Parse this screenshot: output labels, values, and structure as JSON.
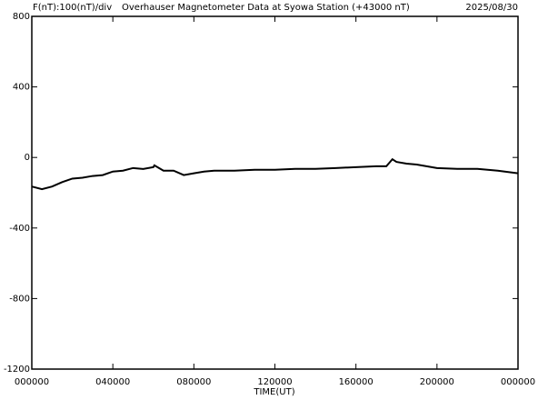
{
  "chart_data": {
    "type": "line",
    "header_left": "F(nT):100(nT)/div",
    "title": "Overhauser Magnetometer Data at Syowa Station (+43000 nT)",
    "date": "2025/08/30",
    "x_label": "TIME(UT)",
    "x": [
      0,
      0.5,
      1,
      1.5,
      2,
      2.5,
      3,
      3.5,
      4,
      4.5,
      5,
      5.5,
      6,
      6.05,
      6.5,
      7,
      7.5,
      8,
      8.5,
      9,
      10,
      11,
      12,
      13,
      14,
      15,
      16,
      17,
      17.5,
      17.8,
      18,
      18.5,
      19,
      20,
      21,
      22,
      23,
      24
    ],
    "series": [
      {
        "name": "F",
        "color": "#000000",
        "values": [
          -165,
          -180,
          -165,
          -140,
          -120,
          -115,
          -105,
          -100,
          -80,
          -75,
          -60,
          -65,
          -55,
          -45,
          -75,
          -75,
          -100,
          -90,
          -80,
          -75,
          -75,
          -70,
          -70,
          -65,
          -65,
          -60,
          -55,
          -50,
          -50,
          -10,
          -25,
          -35,
          -40,
          -60,
          -65,
          -65,
          -75,
          -90
        ]
      }
    ],
    "xlim": [
      0,
      24
    ],
    "xticks": [
      {
        "value": 0,
        "label": "000000"
      },
      {
        "value": 4,
        "label": "040000"
      },
      {
        "value": 8,
        "label": "080000"
      },
      {
        "value": 12,
        "label": "120000"
      },
      {
        "value": 16,
        "label": "160000"
      },
      {
        "value": 20,
        "label": "200000"
      },
      {
        "value": 24,
        "label": "000000"
      }
    ],
    "ylim": [
      -1200,
      800
    ],
    "yticks": [
      800,
      400,
      0,
      -400,
      -800,
      -1200
    ]
  }
}
